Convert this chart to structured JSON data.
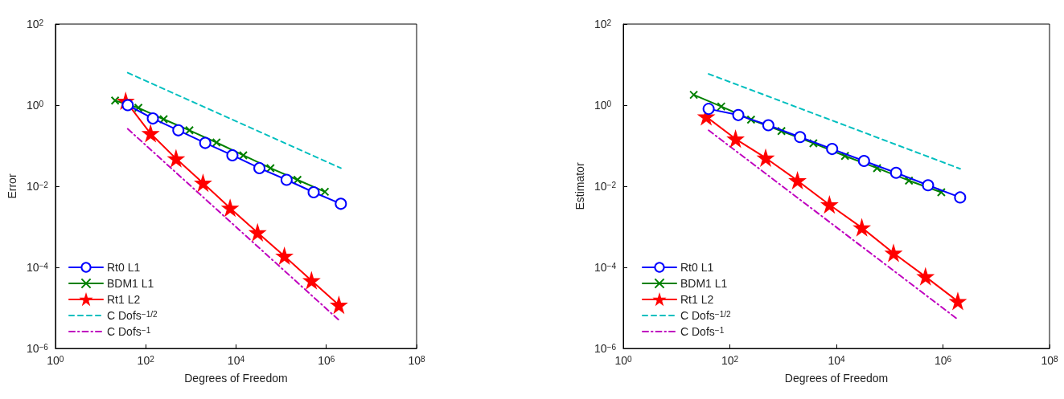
{
  "chart_data": [
    {
      "type": "line",
      "ylabel": "Error",
      "xlabel": "Degrees of Freedom",
      "log": "xy",
      "grid": false,
      "legend": "bottom left",
      "xlim": [
        1,
        100000000
      ],
      "xticks": [
        {
          "value": 1,
          "label": "10$^{0}$"
        },
        {
          "value": 100,
          "label": "10$^{2}$"
        },
        {
          "value": 10000,
          "label": "10$^{4}$"
        },
        {
          "value": 1000000,
          "label": "10$^{6}$"
        },
        {
          "value": 100000000,
          "label": "10$^{8}$"
        }
      ],
      "ylim": [
        1e-06,
        100
      ],
      "yticks": [
        {
          "value": 1e-06,
          "label": "10$^{−6}$"
        },
        {
          "value": 0.0001,
          "label": "10$^{−4}$"
        },
        {
          "value": 0.01,
          "label": "10$^{−2}$"
        },
        {
          "value": 1,
          "label": "10$^{0}$"
        },
        {
          "value": 100,
          "label": "10$^{2}$"
        }
      ],
      "series": [
        {
          "name": "Rt0 L1",
          "color": "#0000ff",
          "marker": "circle",
          "line_style": "solid",
          "x": [
            40,
            144,
            528,
            2080,
            8320,
            33000,
            132000,
            525000,
            2100000
          ],
          "values": [
            1.0,
            0.47,
            0.24,
            0.117,
            0.058,
            0.028,
            0.0144,
            0.0071,
            0.0037
          ]
        },
        {
          "name": "BDM1 L1",
          "color": "#008000",
          "marker": "cross",
          "line_style": "solid",
          "x": [
            21,
            69,
            250,
            930,
            3700,
            14500,
            58000,
            230000,
            930000
          ],
          "values": [
            1.3,
            0.86,
            0.45,
            0.24,
            0.12,
            0.058,
            0.028,
            0.0144,
            0.0073
          ]
        },
        {
          "name": "Rt1 L2",
          "color": "#ff0000",
          "marker": "star",
          "line_style": "solid",
          "x": [
            36,
            128,
            470,
            1860,
            7400,
            30000,
            118000,
            470000,
            1900000
          ],
          "values": [
            1.26,
            0.2,
            0.048,
            0.012,
            0.0029,
            0.00072,
            0.00019,
            4.7e-05,
            1.17e-05
          ]
        },
        {
          "name": "C Dofs$^{−1/2}$",
          "color": "#00bfbf",
          "marker": "none",
          "line_style": "dashed",
          "x": [
            40,
            2100000
          ],
          "values": [
            6.3,
            0.028
          ]
        },
        {
          "name": "C Dofs$^{−1}$",
          "color": "#bf00bf",
          "marker": "none",
          "line_style": "dashdot",
          "x": [
            40,
            1900000
          ],
          "values": [
            0.26,
            5e-06
          ]
        }
      ]
    },
    {
      "type": "line",
      "ylabel": "Estimator",
      "xlabel": "Degrees of Freedom",
      "log": "xy",
      "grid": false,
      "legend": "bottom left",
      "xlim": [
        1,
        100000000
      ],
      "xticks": [
        {
          "value": 1,
          "label": "10$^{0}$"
        },
        {
          "value": 100,
          "label": "10$^{2}$"
        },
        {
          "value": 10000,
          "label": "10$^{4}$"
        },
        {
          "value": 1000000,
          "label": "10$^{6}$"
        },
        {
          "value": 100000000,
          "label": "10$^{8}$"
        }
      ],
      "ylim": [
        1e-06,
        100
      ],
      "yticks": [
        {
          "value": 1e-06,
          "label": "10$^{−6}$"
        },
        {
          "value": 0.0001,
          "label": "10$^{−4}$"
        },
        {
          "value": 0.01,
          "label": "10$^{−2}$"
        },
        {
          "value": 1,
          "label": "10$^{0}$"
        },
        {
          "value": 100,
          "label": "10$^{2}$"
        }
      ],
      "series": [
        {
          "name": "Rt0 L1",
          "color": "#0000ff",
          "marker": "circle",
          "line_style": "solid",
          "x": [
            40,
            144,
            528,
            2080,
            8320,
            33000,
            132000,
            525000,
            2100000
          ],
          "values": [
            0.81,
            0.57,
            0.32,
            0.163,
            0.083,
            0.042,
            0.0215,
            0.0106,
            0.0053
          ]
        },
        {
          "name": "BDM1 L1",
          "color": "#008000",
          "marker": "cross",
          "line_style": "solid",
          "x": [
            21,
            69,
            250,
            930,
            3700,
            14500,
            58000,
            230000,
            930000
          ],
          "values": [
            1.8,
            0.93,
            0.44,
            0.23,
            0.115,
            0.056,
            0.028,
            0.0138,
            0.0071
          ]
        },
        {
          "name": "Rt1 L2",
          "color": "#ff0000",
          "marker": "star",
          "line_style": "solid",
          "x": [
            36,
            128,
            470,
            1860,
            7400,
            30000,
            118000,
            470000,
            1900000
          ],
          "values": [
            0.52,
            0.147,
            0.05,
            0.0138,
            0.0035,
            0.00095,
            0.000224,
            5.9e-05,
            1.45e-05
          ]
        },
        {
          "name": "C Dofs$^{−1/2}$",
          "color": "#00bfbf",
          "marker": "none",
          "line_style": "dashed",
          "x": [
            40,
            2100000
          ],
          "values": [
            5.9,
            0.027
          ]
        },
        {
          "name": "C Dofs$^{−1}$",
          "color": "#bf00bf",
          "marker": "none",
          "line_style": "dashdot",
          "x": [
            40,
            1900000
          ],
          "values": [
            0.24,
            5.2e-06
          ]
        }
      ]
    }
  ]
}
